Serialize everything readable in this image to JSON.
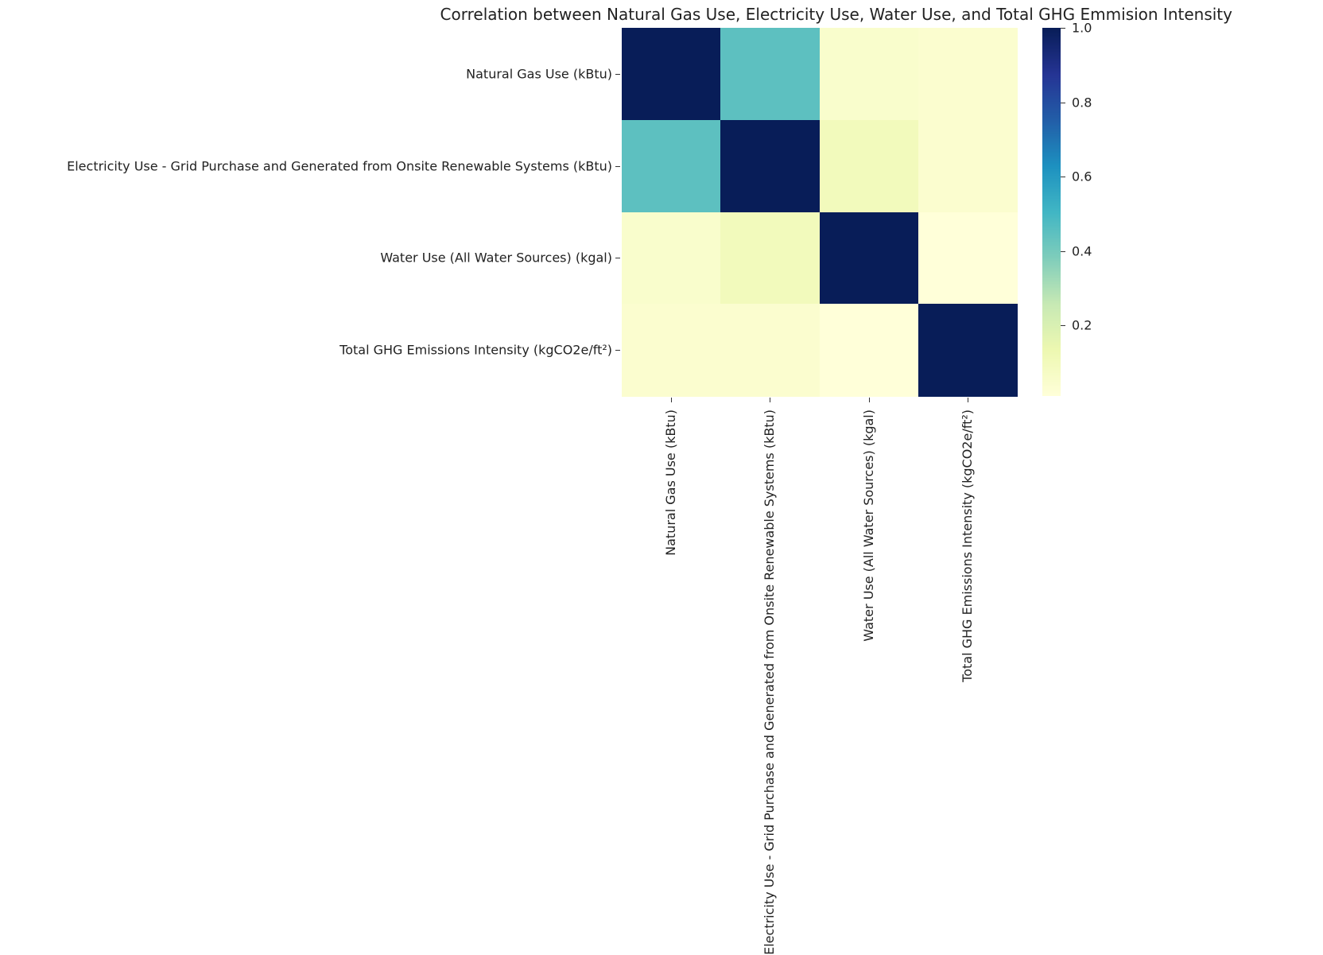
{
  "chart_data": {
    "type": "heatmap",
    "title": "Correlation between Natural Gas Use, Electricity Use, Water Use, and Total GHG Emmision Intensity",
    "row_labels": [
      "Natural Gas Use (kBtu)",
      "Electricity Use - Grid Purchase and Generated from Onsite Renewable Systems (kBtu)",
      "Water Use (All Water Sources) (kgal)",
      "Total GHG Emissions Intensity (kgCO2e/ft²)"
    ],
    "col_labels": [
      "Natural Gas Use (kBtu)",
      "Electricity Use - Grid Purchase and Generated from Onsite Renewable Systems (kBtu)",
      "Water Use (All Water Sources) (kgal)",
      "Total GHG Emissions Intensity (kgCO2e/ft²)"
    ],
    "values": [
      [
        1.0,
        0.45,
        0.05,
        0.04
      ],
      [
        0.45,
        1.0,
        0.1,
        0.04
      ],
      [
        0.05,
        0.1,
        1.0,
        0.01
      ],
      [
        0.04,
        0.04,
        0.01,
        1.0
      ]
    ],
    "colormap": "YlGnBu",
    "vmin": 0.01,
    "vmax": 1.0,
    "colorbar_ticks": [
      "0.2",
      "0.4",
      "0.6",
      "0.8",
      "1.0"
    ]
  }
}
